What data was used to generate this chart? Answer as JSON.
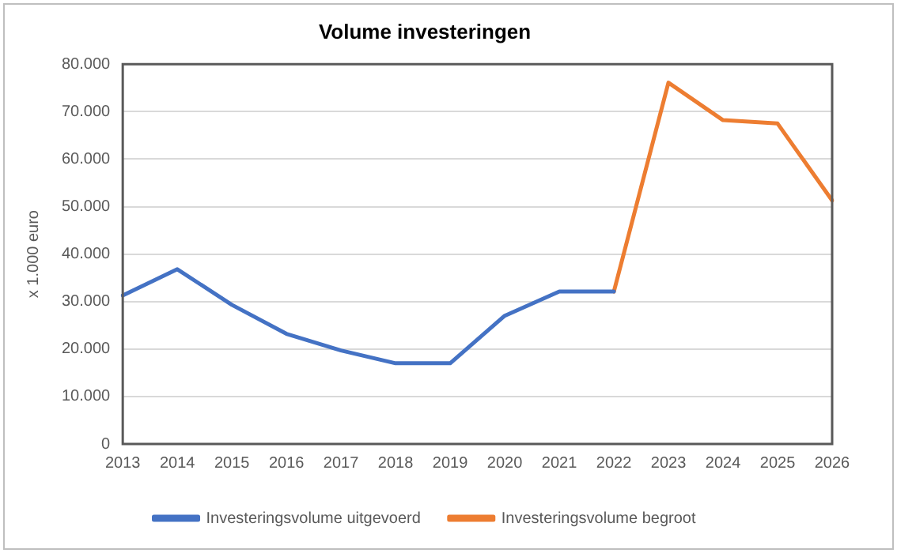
{
  "chart_data": {
    "type": "line",
    "title": "Volume investeringen",
    "ylabel": "x 1.000 euro",
    "categories": [
      "2013",
      "2014",
      "2015",
      "2016",
      "2017",
      "2018",
      "2019",
      "2020",
      "2021",
      "2022",
      "2023",
      "2024",
      "2025",
      "2026"
    ],
    "series": [
      {
        "name": "Investeringsvolume uitgevoerd",
        "color": "#4472c4",
        "values": [
          31300,
          36800,
          29300,
          23200,
          19700,
          17000,
          17000,
          27000,
          32100,
          32100,
          null,
          null,
          null,
          null
        ]
      },
      {
        "name": "Investeringsvolume begroot",
        "color": "#ed7d31",
        "values": [
          null,
          null,
          null,
          null,
          null,
          null,
          null,
          null,
          null,
          32100,
          76100,
          68200,
          67500,
          51300
        ]
      }
    ],
    "ylim": [
      0,
      80000
    ],
    "yticks": [
      {
        "value": 0,
        "label": "0"
      },
      {
        "value": 10000,
        "label": "10.000"
      },
      {
        "value": 20000,
        "label": "20.000"
      },
      {
        "value": 30000,
        "label": "30.000"
      },
      {
        "value": 40000,
        "label": "40.000"
      },
      {
        "value": 50000,
        "label": "50.000"
      },
      {
        "value": 60000,
        "label": "60.000"
      },
      {
        "value": 70000,
        "label": "70.000"
      },
      {
        "value": 80000,
        "label": "80.000"
      }
    ],
    "grid": "y",
    "legend": "bottom",
    "marker": "none",
    "line_style": "solid"
  }
}
